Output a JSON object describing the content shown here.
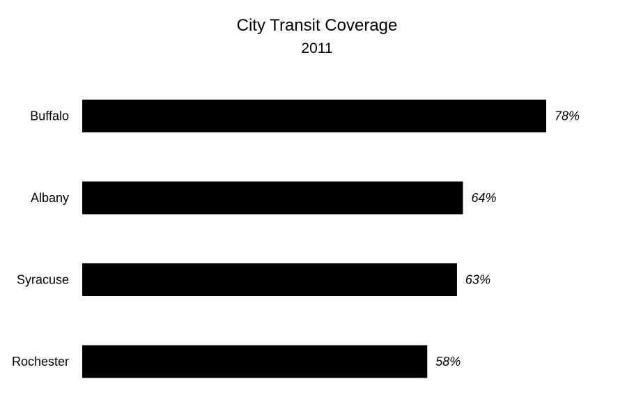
{
  "chart_data": {
    "type": "bar",
    "orientation": "horizontal",
    "title": "City Transit Coverage",
    "subtitle": "2011",
    "categories": [
      "Buffalo",
      "Albany",
      "Syracuse",
      "Rochester"
    ],
    "values": [
      78,
      64,
      63,
      58
    ],
    "value_labels": [
      "78%",
      "64%",
      "63%",
      "58%"
    ],
    "unit": "%",
    "xlim": [
      0,
      78
    ],
    "grid": false,
    "legend": "none",
    "bar_color": "#000000",
    "label_style": "italic"
  }
}
